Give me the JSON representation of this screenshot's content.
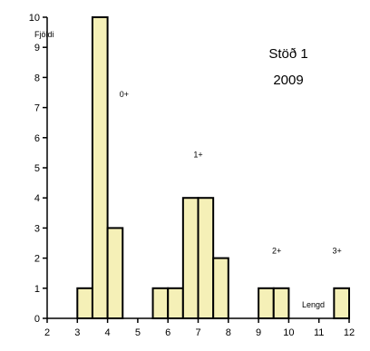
{
  "chart_data": {
    "type": "bar",
    "title": "Stöð 1",
    "subtitle": "2009",
    "xlabel": "Lengd",
    "ylabel": "Fjöldi",
    "xlim": [
      2,
      12
    ],
    "ylim": [
      0,
      10
    ],
    "xticks": [
      2,
      3,
      4,
      5,
      6,
      7,
      8,
      9,
      10,
      11,
      12
    ],
    "yticks": [
      0,
      1,
      2,
      3,
      4,
      5,
      6,
      7,
      8,
      9,
      10
    ],
    "bin_width": 0.5,
    "bins": [
      {
        "start": 3.0,
        "value": 1
      },
      {
        "start": 3.5,
        "value": 10
      },
      {
        "start": 4.0,
        "value": 3
      },
      {
        "start": 5.5,
        "value": 1
      },
      {
        "start": 6.0,
        "value": 1
      },
      {
        "start": 6.5,
        "value": 4
      },
      {
        "start": 7.0,
        "value": 4
      },
      {
        "start": 7.5,
        "value": 2
      },
      {
        "start": 9.0,
        "value": 1
      },
      {
        "start": 9.5,
        "value": 1
      },
      {
        "start": 11.5,
        "value": 1
      }
    ],
    "annotations": [
      {
        "text": "0+",
        "x": 4.55,
        "y": 7.35
      },
      {
        "text": "1+",
        "x": 7.0,
        "y": 5.35
      },
      {
        "text": "2+",
        "x": 9.6,
        "y": 2.15
      },
      {
        "text": "3+",
        "x": 11.6,
        "y": 2.15
      }
    ],
    "bar_fill": "#f5f0b7",
    "bar_stroke": "#000000",
    "grid": false
  }
}
